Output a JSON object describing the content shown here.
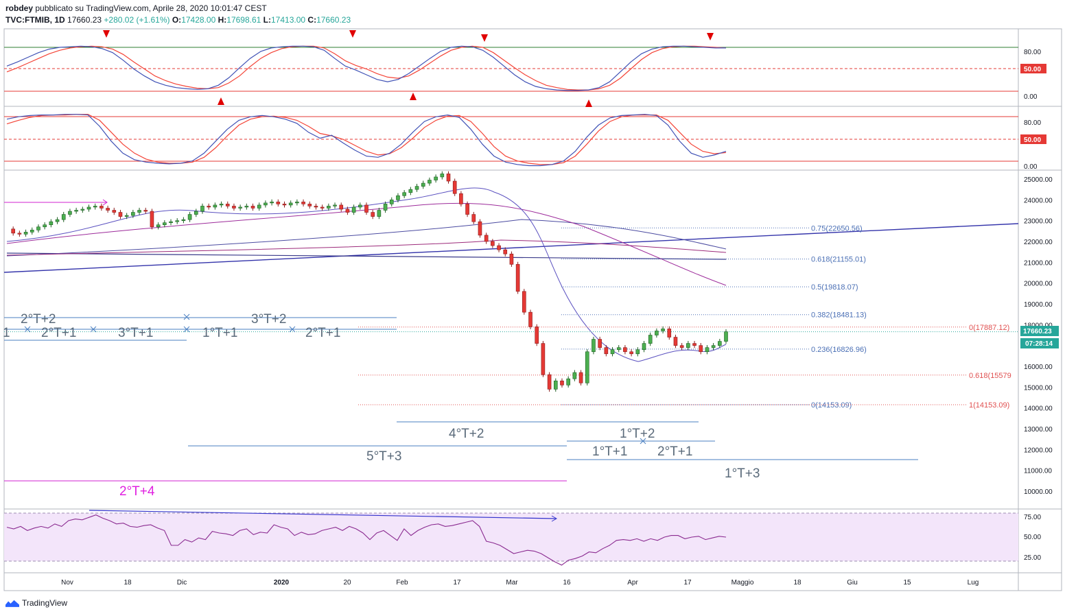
{
  "header": {
    "author": "robdey",
    "published": "pubblicato su TradingView.com, Aprile 28, 2020 10:01:47 CEST",
    "symbol": "TVC:FTMIB, 1D",
    "last": "17660.23",
    "change": "+280.02 (+1.61%)",
    "o_label": "O:",
    "o_val": "17428.00",
    "h_label": "H:",
    "h_val": "17698.61",
    "l_label": "L:",
    "l_val": "17413.00",
    "c_label": "C:",
    "c_val": "17660.23"
  },
  "footer": {
    "brand": "TradingView"
  },
  "chart_data": {
    "type": "candlestick",
    "title": "TVC:FTMIB, 1D",
    "x_ticks": [
      "Nov",
      "18",
      "Dic",
      "2020",
      "20",
      "Feb",
      "17",
      "Mar",
      "16",
      "Apr",
      "17",
      "Maggio",
      "18",
      "Giu",
      "15",
      "Lug"
    ],
    "price_axis": {
      "range": [
        9500,
        25300
      ],
      "ticks": [
        "25000.00",
        "24000.00",
        "23000.00",
        "22000.00",
        "21000.00",
        "20000.00",
        "19000.00",
        "18000.00",
        "17000.00",
        "16000.00",
        "15000.00",
        "14000.00",
        "13000.00",
        "12000.00",
        "11000.00",
        "10000.00"
      ],
      "last_price_label": "17660.23",
      "countdown_label": "07:28:14"
    },
    "price_series": [
      22600,
      22400,
      22350,
      22450,
      22550,
      22700,
      22800,
      22950,
      23050,
      23300,
      23450,
      23500,
      23550,
      23650,
      23700,
      23600,
      23500,
      23400,
      23200,
      23250,
      23400,
      23500,
      23450,
      22700,
      22800,
      22900,
      22950,
      23000,
      23050,
      23300,
      23450,
      23700,
      23650,
      23750,
      23800,
      23700,
      23600,
      23650,
      23700,
      23600,
      23750,
      23850,
      23900,
      23800,
      23750,
      23850,
      23900,
      23800,
      23700,
      23650,
      23600,
      23700,
      23750,
      23550,
      23400,
      23650,
      23750,
      23400,
      23200,
      23500,
      23800,
      24000,
      24200,
      24350,
      24500,
      24650,
      24800,
      24950,
      25100,
      25250,
      24900,
      24300,
      23800,
      23300,
      22950,
      22300,
      22000,
      21800,
      21600,
      21400,
      20900,
      19600,
      18600,
      17900,
      17100,
      15600,
      14900,
      15300,
      15100,
      15400,
      15700,
      15200,
      16700,
      17300,
      16900,
      16600,
      16800,
      16900,
      16700,
      16600,
      16800,
      17100,
      17500,
      17700,
      17800,
      17400,
      17000,
      16900,
      17100,
      17000,
      16700,
      16900,
      17000,
      17200,
      17660
    ],
    "price_series_note": "",
    "fib_levels_right": [
      {
        "label": "0.75(22650.56)",
        "value": 22650.56
      },
      {
        "label": "0.618(21155.01)",
        "value": 21155.01
      },
      {
        "label": "0.5(19818.07)",
        "value": 19818.07
      },
      {
        "label": "0.382(18481.13)",
        "value": 18481.13
      },
      {
        "label": "0.236(16826.96)",
        "value": 16826.96
      },
      {
        "label": "0(14153.09)",
        "value": 14153.09
      }
    ],
    "fib_levels_far": [
      {
        "label": "0(17887.12)",
        "value": 17887.12
      },
      {
        "label": "0.618(15579",
        "value": 15579
      },
      {
        "label": "1(14153.09)",
        "value": 14153.09
      }
    ],
    "cycle_labels": [
      {
        "text": "2°T+2",
        "color": "#5a6a7a"
      },
      {
        "text": "3°T+2",
        "color": "#5a6a7a"
      },
      {
        "text": "1",
        "color": "#5a6a7a"
      },
      {
        "text": "2°T+1",
        "color": "#5a6a7a"
      },
      {
        "text": "3°T+1",
        "color": "#5a6a7a"
      },
      {
        "text": "1°T+1",
        "color": "#5a6a7a"
      },
      {
        "text": "2°T+1",
        "color": "#5a6a7a"
      },
      {
        "text": "4°T+2",
        "color": "#5a6a7a"
      },
      {
        "text": "1°T+2",
        "color": "#5a6a7a"
      },
      {
        "text": "5°T+3",
        "color": "#5a6a7a"
      },
      {
        "text": "1°T+1",
        "color": "#5a6a7a"
      },
      {
        "text": "2°T+1",
        "color": "#5a6a7a"
      },
      {
        "text": "1°T+3",
        "color": "#5a6a7a"
      },
      {
        "text": "2°T+4",
        "color": "#e020e0"
      }
    ],
    "stoch1": {
      "ticks": [
        "80.00",
        "0.00"
      ],
      "mid_label": "50.00",
      "k": [
        55,
        62,
        70,
        78,
        84,
        87,
        88,
        89,
        88,
        85,
        78,
        65,
        50,
        38,
        28,
        22,
        18,
        16,
        15,
        16,
        22,
        35,
        52,
        68,
        80,
        86,
        88,
        89,
        89,
        88,
        82,
        68,
        55,
        48,
        40,
        32,
        28,
        32,
        42,
        55,
        68,
        80,
        87,
        89,
        88,
        82,
        70,
        55,
        40,
        28,
        20,
        16,
        14,
        13,
        13,
        14,
        18,
        28,
        45,
        62,
        76,
        84,
        88,
        89,
        89,
        88,
        87,
        86,
        86
      ],
      "d": [
        45,
        52,
        60,
        68,
        76,
        82,
        86,
        88,
        89,
        88,
        84,
        75,
        62,
        50,
        38,
        30,
        24,
        20,
        17,
        16,
        18,
        26,
        38,
        54,
        68,
        78,
        85,
        88,
        89,
        89,
        86,
        76,
        64,
        56,
        50,
        42,
        36,
        34,
        38,
        48,
        60,
        72,
        82,
        87,
        89,
        87,
        78,
        65,
        52,
        40,
        30,
        22,
        18,
        15,
        14,
        14,
        16,
        22,
        34,
        50,
        66,
        78,
        85,
        88,
        89,
        89,
        88,
        87,
        86
      ]
    },
    "stoch2": {
      "ticks": [
        "80.00",
        "0.00"
      ],
      "mid_label": "50.00",
      "k": [
        82,
        86,
        88,
        89,
        89,
        90,
        90,
        89,
        70,
        45,
        25,
        14,
        10,
        8,
        7,
        8,
        12,
        25,
        45,
        65,
        80,
        86,
        88,
        86,
        82,
        75,
        60,
        50,
        55,
        42,
        30,
        20,
        18,
        25,
        40,
        60,
        78,
        86,
        89,
        85,
        65,
        40,
        20,
        10,
        6,
        4,
        4,
        6,
        12,
        28,
        52,
        72,
        84,
        88,
        89,
        90,
        88,
        72,
        45,
        25,
        18,
        22,
        28
      ],
      "d": [
        74,
        80,
        85,
        88,
        89,
        89,
        90,
        90,
        80,
        60,
        40,
        25,
        15,
        10,
        8,
        8,
        10,
        18,
        34,
        54,
        72,
        82,
        86,
        87,
        85,
        80,
        70,
        58,
        54,
        48,
        38,
        28,
        22,
        24,
        34,
        50,
        68,
        80,
        87,
        88,
        78,
        58,
        36,
        20,
        12,
        8,
        6,
        6,
        9,
        20,
        40,
        62,
        78,
        86,
        89,
        89,
        89,
        80,
        60,
        40,
        28,
        24,
        26
      ]
    },
    "rsi": {
      "ticks": [
        "75.00",
        "50.00",
        "25.00"
      ],
      "values": [
        62,
        60,
        63,
        58,
        61,
        63,
        61,
        66,
        63,
        70,
        72,
        71,
        74,
        77,
        73,
        70,
        66,
        67,
        63,
        62,
        64,
        65,
        61,
        58,
        40,
        40,
        47,
        44,
        49,
        47,
        57,
        55,
        54,
        52,
        58,
        60,
        53,
        56,
        55,
        65,
        62,
        60,
        52,
        56,
        53,
        54,
        58,
        60,
        62,
        58,
        63,
        60,
        55,
        47,
        55,
        58,
        52,
        46,
        60,
        52,
        58,
        62,
        65,
        66,
        63,
        64,
        66,
        68,
        70,
        63,
        45,
        43,
        40,
        35,
        30,
        32,
        34,
        33,
        30,
        25,
        20,
        16,
        22,
        24,
        27,
        32,
        31,
        36,
        40,
        46,
        47,
        46,
        48,
        45,
        48,
        46,
        50,
        52,
        52,
        48,
        50,
        51,
        47,
        49,
        51,
        50
      ]
    }
  }
}
